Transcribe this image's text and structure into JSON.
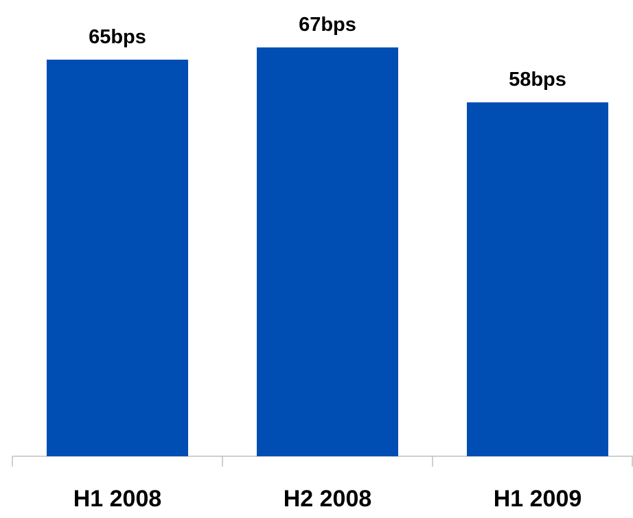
{
  "chart_data": {
    "type": "bar",
    "categories": [
      "H1 2008",
      "H2 2008",
      "H1 2009"
    ],
    "values": [
      65,
      67,
      58
    ],
    "value_labels": [
      "65bps",
      "67bps",
      "58bps"
    ],
    "color": "#004db3",
    "ylim": [
      0,
      75
    ]
  }
}
